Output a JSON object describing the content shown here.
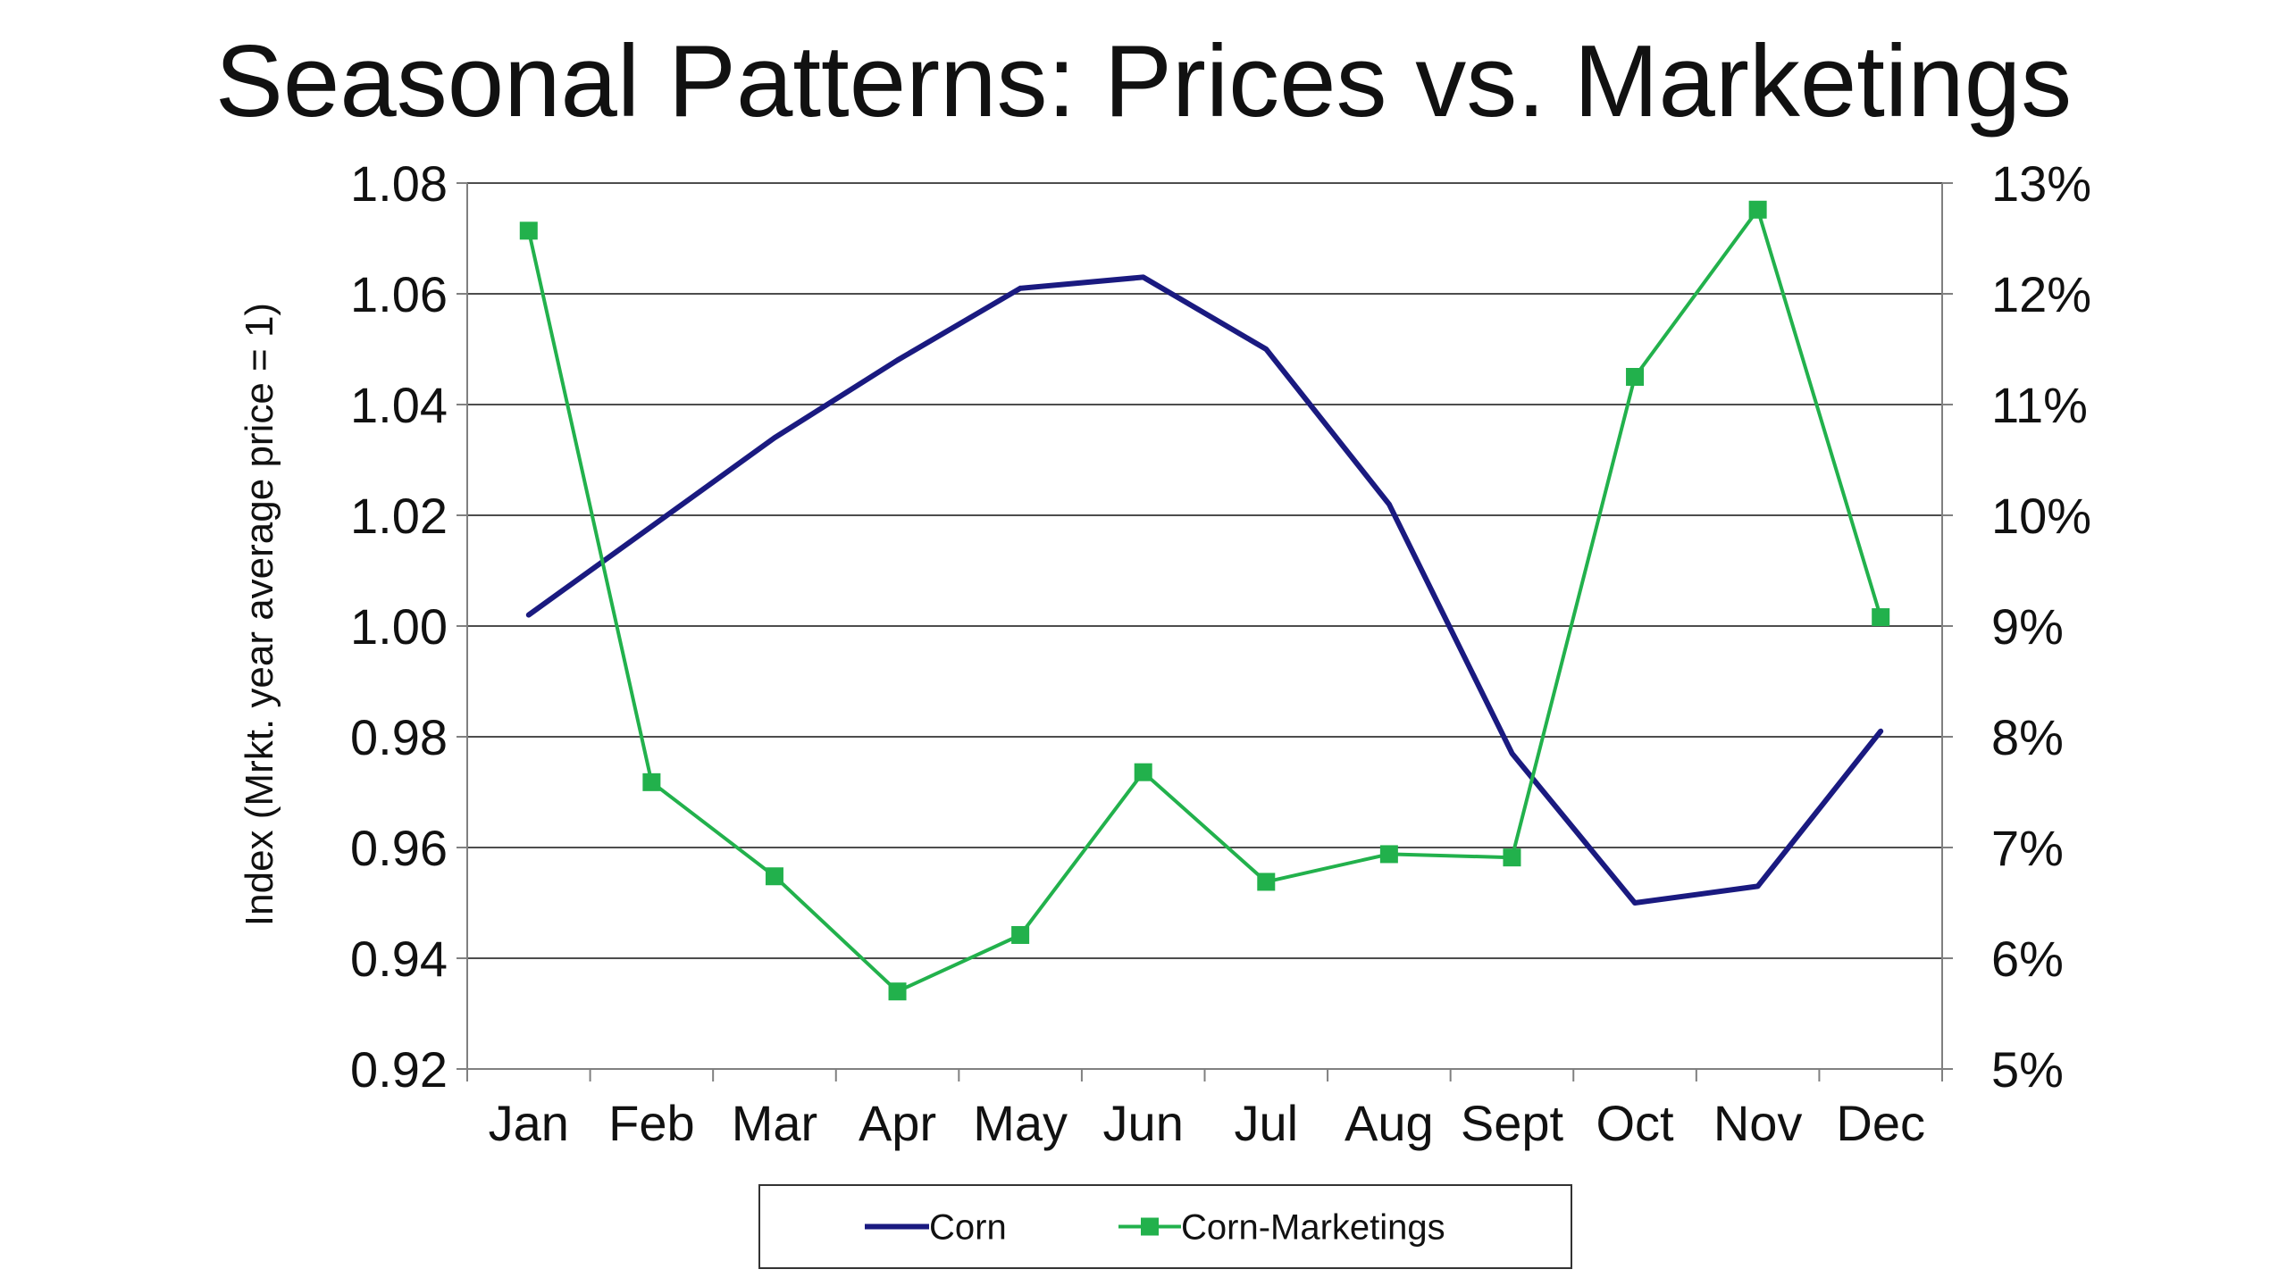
{
  "chart_data": {
    "type": "line",
    "title": "Seasonal Patterns: Prices vs. Marketings",
    "xlabel": "",
    "ylabel": "Index (Mrkt. year average price = 1)",
    "y2label": "",
    "categories": [
      "Jan",
      "Feb",
      "Mar",
      "Apr",
      "May",
      "Jun",
      "Jul",
      "Aug",
      "Sept",
      "Oct",
      "Nov",
      "Dec"
    ],
    "ylim": [
      0.92,
      1.08
    ],
    "y_ticks": [
      "0.92",
      "0.94",
      "0.96",
      "0.98",
      "1.00",
      "1.02",
      "1.04",
      "1.06",
      "1.08"
    ],
    "y2lim": [
      5,
      13
    ],
    "y2_ticks": [
      "5%",
      "6%",
      "7%",
      "8%",
      "9%",
      "10%",
      "11%",
      "12%",
      "13%"
    ],
    "grid": true,
    "legend_position": "bottom",
    "series": [
      {
        "name": "Corn",
        "axis": "left",
        "color": "#1a1a80",
        "marker": "none",
        "values": [
          1.002,
          1.018,
          1.034,
          1.048,
          1.061,
          1.063,
          1.05,
          1.022,
          0.977,
          0.95,
          0.953,
          0.981
        ]
      },
      {
        "name": "Corn-Marketings",
        "axis": "right",
        "color": "#22b14c",
        "marker": "square",
        "values": [
          12.57,
          7.59,
          6.74,
          5.7,
          6.21,
          7.68,
          6.69,
          6.94,
          6.91,
          11.25,
          12.76,
          9.08
        ]
      }
    ]
  }
}
